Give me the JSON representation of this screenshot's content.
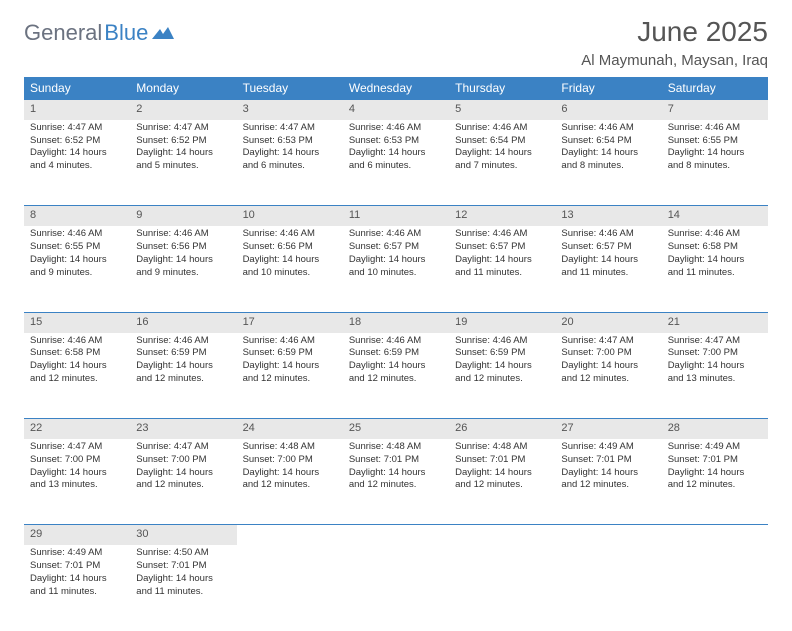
{
  "logo": {
    "text_general": "General",
    "text_blue": "Blue",
    "icon_color": "#3b82c4"
  },
  "title": "June 2025",
  "location": "Al Maymunah, Maysan, Iraq",
  "header_bg": "#3b82c4",
  "header_text_color": "#ffffff",
  "daynum_bg": "#e8e8e8",
  "border_color": "#3b82c4",
  "weekdays": [
    "Sunday",
    "Monday",
    "Tuesday",
    "Wednesday",
    "Thursday",
    "Friday",
    "Saturday"
  ],
  "weeks": [
    [
      {
        "d": "1",
        "sr": "4:47 AM",
        "ss": "6:52 PM",
        "dl": "14 hours and 4 minutes."
      },
      {
        "d": "2",
        "sr": "4:47 AM",
        "ss": "6:52 PM",
        "dl": "14 hours and 5 minutes."
      },
      {
        "d": "3",
        "sr": "4:47 AM",
        "ss": "6:53 PM",
        "dl": "14 hours and 6 minutes."
      },
      {
        "d": "4",
        "sr": "4:46 AM",
        "ss": "6:53 PM",
        "dl": "14 hours and 6 minutes."
      },
      {
        "d": "5",
        "sr": "4:46 AM",
        "ss": "6:54 PM",
        "dl": "14 hours and 7 minutes."
      },
      {
        "d": "6",
        "sr": "4:46 AM",
        "ss": "6:54 PM",
        "dl": "14 hours and 8 minutes."
      },
      {
        "d": "7",
        "sr": "4:46 AM",
        "ss": "6:55 PM",
        "dl": "14 hours and 8 minutes."
      }
    ],
    [
      {
        "d": "8",
        "sr": "4:46 AM",
        "ss": "6:55 PM",
        "dl": "14 hours and 9 minutes."
      },
      {
        "d": "9",
        "sr": "4:46 AM",
        "ss": "6:56 PM",
        "dl": "14 hours and 9 minutes."
      },
      {
        "d": "10",
        "sr": "4:46 AM",
        "ss": "6:56 PM",
        "dl": "14 hours and 10 minutes."
      },
      {
        "d": "11",
        "sr": "4:46 AM",
        "ss": "6:57 PM",
        "dl": "14 hours and 10 minutes."
      },
      {
        "d": "12",
        "sr": "4:46 AM",
        "ss": "6:57 PM",
        "dl": "14 hours and 11 minutes."
      },
      {
        "d": "13",
        "sr": "4:46 AM",
        "ss": "6:57 PM",
        "dl": "14 hours and 11 minutes."
      },
      {
        "d": "14",
        "sr": "4:46 AM",
        "ss": "6:58 PM",
        "dl": "14 hours and 11 minutes."
      }
    ],
    [
      {
        "d": "15",
        "sr": "4:46 AM",
        "ss": "6:58 PM",
        "dl": "14 hours and 12 minutes."
      },
      {
        "d": "16",
        "sr": "4:46 AM",
        "ss": "6:59 PM",
        "dl": "14 hours and 12 minutes."
      },
      {
        "d": "17",
        "sr": "4:46 AM",
        "ss": "6:59 PM",
        "dl": "14 hours and 12 minutes."
      },
      {
        "d": "18",
        "sr": "4:46 AM",
        "ss": "6:59 PM",
        "dl": "14 hours and 12 minutes."
      },
      {
        "d": "19",
        "sr": "4:46 AM",
        "ss": "6:59 PM",
        "dl": "14 hours and 12 minutes."
      },
      {
        "d": "20",
        "sr": "4:47 AM",
        "ss": "7:00 PM",
        "dl": "14 hours and 12 minutes."
      },
      {
        "d": "21",
        "sr": "4:47 AM",
        "ss": "7:00 PM",
        "dl": "14 hours and 13 minutes."
      }
    ],
    [
      {
        "d": "22",
        "sr": "4:47 AM",
        "ss": "7:00 PM",
        "dl": "14 hours and 13 minutes."
      },
      {
        "d": "23",
        "sr": "4:47 AM",
        "ss": "7:00 PM",
        "dl": "14 hours and 12 minutes."
      },
      {
        "d": "24",
        "sr": "4:48 AM",
        "ss": "7:00 PM",
        "dl": "14 hours and 12 minutes."
      },
      {
        "d": "25",
        "sr": "4:48 AM",
        "ss": "7:01 PM",
        "dl": "14 hours and 12 minutes."
      },
      {
        "d": "26",
        "sr": "4:48 AM",
        "ss": "7:01 PM",
        "dl": "14 hours and 12 minutes."
      },
      {
        "d": "27",
        "sr": "4:49 AM",
        "ss": "7:01 PM",
        "dl": "14 hours and 12 minutes."
      },
      {
        "d": "28",
        "sr": "4:49 AM",
        "ss": "7:01 PM",
        "dl": "14 hours and 12 minutes."
      }
    ],
    [
      {
        "d": "29",
        "sr": "4:49 AM",
        "ss": "7:01 PM",
        "dl": "14 hours and 11 minutes."
      },
      {
        "d": "30",
        "sr": "4:50 AM",
        "ss": "7:01 PM",
        "dl": "14 hours and 11 minutes."
      },
      null,
      null,
      null,
      null,
      null
    ]
  ],
  "labels": {
    "sunrise": "Sunrise:",
    "sunset": "Sunset:",
    "daylight": "Daylight:"
  }
}
